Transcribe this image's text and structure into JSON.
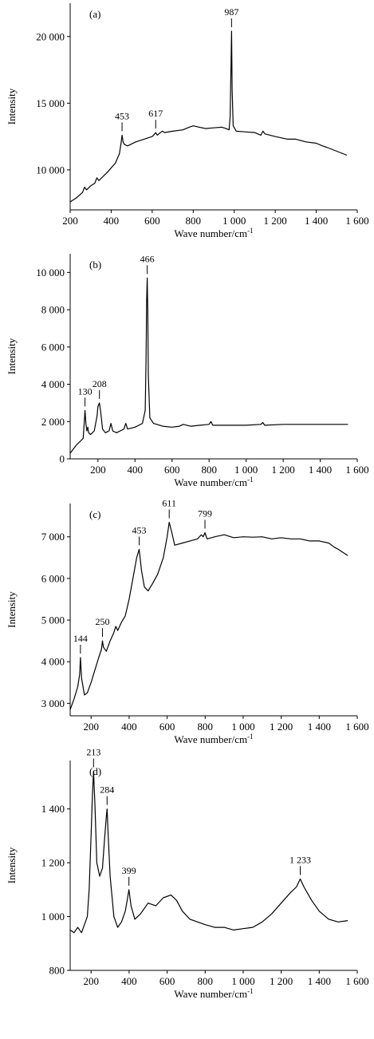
{
  "chart_data": [
    {
      "panel_label": "(a)",
      "type": "line",
      "xlabel": "Wave number/cm",
      "xlabel_superscript": "-1",
      "ylabel": "Intensity",
      "xlim": [
        200,
        1600
      ],
      "ylim": [
        7000,
        22500
      ],
      "x_ticks": [
        200,
        400,
        600,
        800,
        1000,
        1200,
        1400,
        1600
      ],
      "x_tick_labels": [
        "200",
        "400",
        "600",
        "800",
        "1 000",
        "1 200",
        "1 400",
        "1 600"
      ],
      "y_ticks": [
        10000,
        15000,
        20000
      ],
      "y_tick_labels": [
        "10 000",
        "15 000",
        "20 000"
      ],
      "annotations": [
        {
          "label": "453",
          "x": 453,
          "y": 12600
        },
        {
          "label": "617",
          "x": 617,
          "y": 12800
        },
        {
          "label": "987",
          "x": 987,
          "y": 20400
        }
      ],
      "series": [
        {
          "x": [
            200,
            230,
            260,
            270,
            280,
            300,
            320,
            330,
            340,
            380,
            420,
            440,
            448,
            453,
            458,
            465,
            480,
            520,
            560,
            600,
            610,
            617,
            625,
            640,
            650,
            660,
            700,
            750,
            780,
            800,
            830,
            860,
            900,
            940,
            960,
            975,
            980,
            985,
            987,
            990,
            995,
            1010,
            1050,
            1100,
            1130,
            1140,
            1150,
            1200,
            1260,
            1300,
            1350,
            1400,
            1430,
            1450,
            1500,
            1550
          ],
          "y": [
            7600,
            7900,
            8300,
            8700,
            8500,
            8800,
            9000,
            9400,
            9200,
            9800,
            10500,
            11200,
            12000,
            12600,
            12100,
            11900,
            11800,
            12100,
            12300,
            12500,
            12650,
            12800,
            12600,
            12800,
            12900,
            12800,
            12900,
            13000,
            13200,
            13300,
            13200,
            13100,
            13150,
            13200,
            13100,
            13000,
            14000,
            18500,
            20400,
            16000,
            13300,
            12900,
            12850,
            12800,
            12600,
            12900,
            12700,
            12500,
            12300,
            12300,
            12100,
            12000,
            11800,
            11700,
            11400,
            11100
          ]
        }
      ]
    },
    {
      "panel_label": "(b)",
      "type": "line",
      "xlabel": "Wave number/cm",
      "xlabel_superscript": "-1",
      "ylabel": "Intensity",
      "xlim": [
        50,
        1600
      ],
      "ylim": [
        0,
        11000
      ],
      "x_ticks": [
        200,
        400,
        600,
        800,
        1000,
        1200,
        1400,
        1600
      ],
      "x_tick_labels": [
        "200",
        "400",
        "600",
        "800",
        "1 000",
        "1 200",
        "1 400",
        "1 600"
      ],
      "y_ticks": [
        0,
        2000,
        4000,
        6000,
        8000,
        10000
      ],
      "y_tick_labels": [
        "0",
        "2 000",
        "4 000",
        "6 000",
        "8 000",
        "10 000"
      ],
      "annotations": [
        {
          "label": "130",
          "x": 130,
          "y": 2600
        },
        {
          "label": "208",
          "x": 208,
          "y": 3000
        },
        {
          "label": "466",
          "x": 466,
          "y": 9700
        }
      ],
      "series": [
        {
          "x": [
            50,
            80,
            100,
            120,
            125,
            130,
            135,
            140,
            145,
            150,
            160,
            180,
            195,
            200,
            208,
            215,
            225,
            240,
            260,
            270,
            280,
            300,
            340,
            350,
            360,
            400,
            440,
            455,
            460,
            463,
            466,
            469,
            472,
            480,
            500,
            550,
            600,
            640,
            660,
            700,
            750,
            800,
            810,
            820,
            900,
            1000,
            1080,
            1090,
            1100,
            1200,
            1300,
            1400,
            1500,
            1550
          ],
          "y": [
            300,
            700,
            900,
            1100,
            1800,
            2600,
            1900,
            1500,
            1700,
            1400,
            1300,
            1500,
            2300,
            2800,
            3000,
            2500,
            1600,
            1400,
            1500,
            1900,
            1500,
            1400,
            1600,
            1900,
            1600,
            1700,
            1900,
            2600,
            5500,
            8500,
            9700,
            8000,
            4500,
            2200,
            1900,
            1750,
            1700,
            1750,
            1850,
            1750,
            1800,
            1850,
            2000,
            1800,
            1800,
            1800,
            1850,
            1950,
            1800,
            1850,
            1850,
            1850,
            1850,
            1850
          ]
        }
      ]
    },
    {
      "panel_label": "(c)",
      "type": "line",
      "xlabel": "Wave number/cm",
      "xlabel_superscript": "-1",
      "ylabel": "Intensity",
      "xlim": [
        90,
        1600
      ],
      "ylim": [
        2700,
        7800
      ],
      "x_ticks": [
        200,
        400,
        600,
        800,
        1000,
        1200,
        1400,
        1600
      ],
      "x_tick_labels": [
        "200",
        "400",
        "600",
        "800",
        "1 000",
        "1 200",
        "1 400",
        "1 600"
      ],
      "y_ticks": [
        3000,
        4000,
        5000,
        6000,
        7000
      ],
      "y_tick_labels": [
        "3 000",
        "4 000",
        "5 000",
        "6 000",
        "7 000"
      ],
      "annotations": [
        {
          "label": "144",
          "x": 144,
          "y": 4100
        },
        {
          "label": "250",
          "x": 260,
          "y": 4500
        },
        {
          "label": "453",
          "x": 453,
          "y": 6700
        },
        {
          "label": "611",
          "x": 611,
          "y": 7350
        },
        {
          "label": "799",
          "x": 799,
          "y": 7100
        }
      ],
      "series": [
        {
          "x": [
            90,
            110,
            130,
            140,
            144,
            150,
            165,
            180,
            200,
            220,
            240,
            255,
            260,
            265,
            280,
            300,
            320,
            330,
            340,
            360,
            380,
            400,
            420,
            440,
            453,
            465,
            480,
            500,
            520,
            550,
            580,
            600,
            611,
            625,
            640,
            680,
            720,
            760,
            780,
            790,
            799,
            810,
            850,
            900,
            950,
            1000,
            1050,
            1100,
            1150,
            1200,
            1250,
            1300,
            1350,
            1400,
            1450,
            1480,
            1500,
            1550
          ],
          "y": [
            2850,
            3100,
            3400,
            3700,
            4100,
            3600,
            3200,
            3250,
            3500,
            3800,
            4100,
            4300,
            4500,
            4350,
            4250,
            4500,
            4700,
            4850,
            4750,
            4950,
            5100,
            5500,
            6000,
            6500,
            6700,
            6200,
            5800,
            5700,
            5850,
            6100,
            6500,
            7000,
            7350,
            7100,
            6800,
            6850,
            6900,
            6950,
            7050,
            7000,
            7100,
            6950,
            7000,
            7050,
            6980,
            7000,
            6990,
            7000,
            6950,
            6980,
            6950,
            6950,
            6900,
            6900,
            6850,
            6750,
            6700,
            6550
          ]
        }
      ]
    },
    {
      "panel_label": "(d)",
      "type": "line",
      "xlabel": "Wave number/cm",
      "xlabel_superscript": "-1",
      "ylabel": "Intensity",
      "xlim": [
        90,
        1600
      ],
      "ylim": [
        800,
        1580
      ],
      "x_ticks": [
        200,
        400,
        600,
        800,
        1000,
        1200,
        1400,
        1600
      ],
      "x_tick_labels": [
        "200",
        "400",
        "600",
        "800",
        "1 000",
        "1 200",
        "1 400",
        "1 600"
      ],
      "y_ticks": [
        800,
        1000,
        1200,
        1400
      ],
      "y_tick_labels": [
        "800",
        "1 000",
        "1 200",
        "1 400"
      ],
      "annotations": [
        {
          "label": "213",
          "x": 213,
          "y": 1540
        },
        {
          "label": "284",
          "x": 284,
          "y": 1400
        },
        {
          "label": "399",
          "x": 399,
          "y": 1100
        },
        {
          "label": "1 233",
          "x": 1300,
          "y": 1140
        }
      ],
      "series": [
        {
          "x": [
            90,
            110,
            130,
            150,
            170,
            180,
            190,
            200,
            207,
            213,
            220,
            230,
            245,
            260,
            270,
            280,
            284,
            290,
            300,
            320,
            340,
            360,
            380,
            390,
            399,
            410,
            430,
            460,
            500,
            540,
            580,
            620,
            650,
            680,
            720,
            760,
            800,
            850,
            900,
            950,
            1000,
            1050,
            1100,
            1150,
            1200,
            1250,
            1280,
            1300,
            1320,
            1360,
            1400,
            1450,
            1500,
            1550
          ],
          "y": [
            950,
            940,
            960,
            940,
            980,
            1000,
            1100,
            1300,
            1450,
            1540,
            1420,
            1200,
            1150,
            1180,
            1280,
            1370,
            1400,
            1300,
            1150,
            1000,
            960,
            980,
            1020,
            1060,
            1100,
            1040,
            990,
            1010,
            1050,
            1040,
            1070,
            1080,
            1060,
            1020,
            990,
            980,
            970,
            960,
            960,
            950,
            955,
            960,
            980,
            1010,
            1050,
            1090,
            1110,
            1140,
            1110,
            1060,
            1020,
            990,
            980,
            985
          ]
        }
      ]
    }
  ]
}
